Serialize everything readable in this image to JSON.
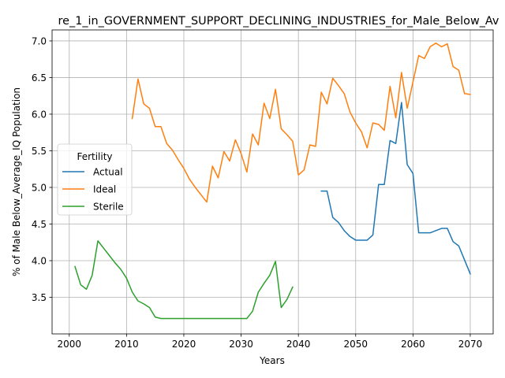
{
  "chart_data": {
    "type": "line",
    "title": "re_1_in_GOVERNMENT_SUPPORT_DECLINING_INDUSTRIES_for_Male_Below_Av",
    "xlabel": "Years",
    "ylabel": "% of Male Below_Average_IQ Population",
    "xlim": [
      1997,
      2074
    ],
    "ylim": [
      3.0,
      7.15
    ],
    "xticks": [
      2000,
      2010,
      2020,
      2030,
      2040,
      2050,
      2060,
      2070
    ],
    "yticks": [
      3.5,
      4.0,
      4.5,
      5.0,
      5.5,
      6.0,
      6.5,
      7.0
    ],
    "xtick_labels": [
      "2000",
      "2010",
      "2020",
      "2030",
      "2040",
      "2050",
      "2060",
      "2070"
    ],
    "ytick_labels": [
      "3.5",
      "4.0",
      "4.5",
      "5.0",
      "5.5",
      "6.0",
      "6.5",
      "7.0"
    ],
    "grid": true,
    "legend": {
      "title": "Fertility",
      "position": "center-left"
    },
    "series": [
      {
        "name": "Actual",
        "color": "#1f77b4",
        "x": [
          2044,
          2045,
          2046,
          2047,
          2048,
          2049,
          2050,
          2051,
          2052,
          2053,
          2054,
          2055,
          2056,
          2057,
          2058,
          2059,
          2060,
          2061,
          2062,
          2063,
          2064,
          2065,
          2066,
          2067,
          2068,
          2069,
          2070
        ],
        "y": [
          4.95,
          4.95,
          4.59,
          4.52,
          4.41,
          4.33,
          4.28,
          4.28,
          4.28,
          4.35,
          5.04,
          5.04,
          5.64,
          5.6,
          6.16,
          5.31,
          5.19,
          4.38,
          4.38,
          4.38,
          4.41,
          4.44,
          4.44,
          4.26,
          4.2,
          4.01,
          3.82
        ]
      },
      {
        "name": "Ideal",
        "color": "#ff7f0e",
        "x": [
          2011,
          2012,
          2013,
          2014,
          2015,
          2016,
          2017,
          2018,
          2019,
          2020,
          2021,
          2022,
          2023,
          2024,
          2025,
          2026,
          2027,
          2028,
          2029,
          2030,
          2031,
          2032,
          2033,
          2034,
          2035,
          2036,
          2037,
          2038,
          2039,
          2040,
          2041,
          2042,
          2043,
          2044,
          2045,
          2046,
          2047,
          2048,
          2049,
          2050,
          2051,
          2052,
          2053,
          2054,
          2055,
          2056,
          2057,
          2058,
          2059,
          2060,
          2061,
          2062,
          2063,
          2064,
          2065,
          2066,
          2067,
          2068,
          2069,
          2070
        ],
        "y": [
          5.94,
          6.48,
          6.14,
          6.08,
          5.83,
          5.83,
          5.6,
          5.51,
          5.38,
          5.26,
          5.11,
          5.0,
          4.9,
          4.8,
          5.29,
          5.13,
          5.49,
          5.36,
          5.65,
          5.46,
          5.21,
          5.73,
          5.58,
          6.15,
          5.94,
          6.34,
          5.8,
          5.72,
          5.63,
          5.17,
          5.24,
          5.58,
          5.56,
          6.3,
          6.14,
          6.49,
          6.39,
          6.28,
          6.03,
          5.88,
          5.76,
          5.54,
          5.88,
          5.86,
          5.78,
          6.38,
          5.95,
          6.57,
          6.08,
          6.44,
          6.8,
          6.76,
          6.92,
          6.97,
          6.92,
          6.96,
          6.65,
          6.6,
          6.28,
          6.27
        ]
      },
      {
        "name": "Sterile",
        "color": "#2ca02c",
        "x": [
          2001,
          2002,
          2003,
          2004,
          2005,
          2006,
          2007,
          2008,
          2009,
          2010,
          2011,
          2012,
          2013,
          2014,
          2015,
          2016,
          2017,
          2018,
          2019,
          2020,
          2021,
          2022,
          2023,
          2024,
          2025,
          2026,
          2027,
          2028,
          2029,
          2030,
          2031,
          2032,
          2033,
          2034,
          2035,
          2036,
          2037,
          2038,
          2039
        ],
        "y": [
          3.92,
          3.67,
          3.61,
          3.8,
          4.27,
          4.17,
          4.07,
          3.97,
          3.88,
          3.76,
          3.57,
          3.45,
          3.41,
          3.36,
          3.23,
          3.21,
          3.21,
          3.21,
          3.21,
          3.21,
          3.21,
          3.21,
          3.21,
          3.21,
          3.21,
          3.21,
          3.21,
          3.21,
          3.21,
          3.21,
          3.21,
          3.31,
          3.57,
          3.69,
          3.8,
          3.99,
          3.36,
          3.47,
          3.64
        ]
      }
    ]
  }
}
